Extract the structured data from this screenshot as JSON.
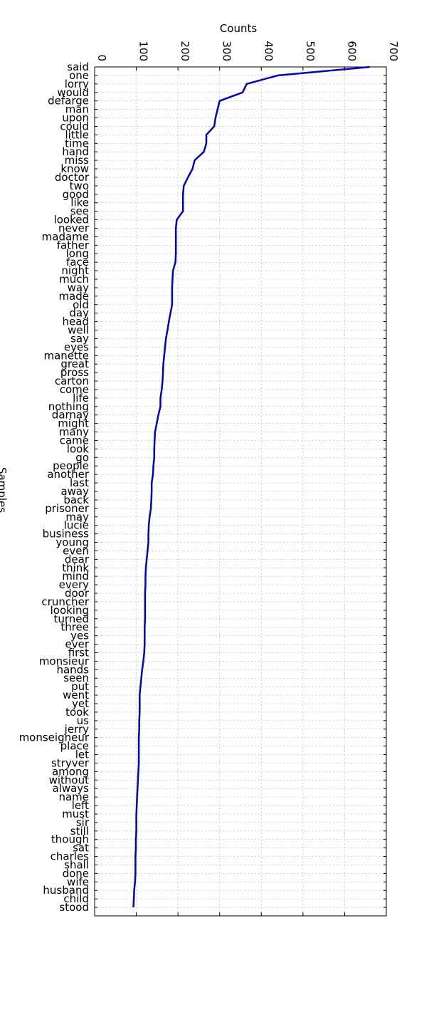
{
  "chart_data": {
    "type": "line",
    "orientation": "vertical-categories",
    "title": "",
    "xlabel": "Counts",
    "ylabel": "Samples",
    "xlim": [
      0,
      700
    ],
    "xticks": [
      "0",
      "100",
      "200",
      "300",
      "400",
      "500",
      "600",
      "700"
    ],
    "grid": true,
    "line_color": "#0000cc",
    "categories": [
      "said",
      "one",
      "lorry",
      "would",
      "defarge",
      "man",
      "upon",
      "could",
      "little",
      "time",
      "hand",
      "miss",
      "know",
      "doctor",
      "two",
      "good",
      "like",
      "see",
      "looked",
      "never",
      "madame",
      "father",
      "long",
      "face",
      "night",
      "much",
      "way",
      "made",
      "old",
      "day",
      "head",
      "well",
      "say",
      "eyes",
      "manette",
      "great",
      "pross",
      "carton",
      "come",
      "life",
      "nothing",
      "darnay",
      "might",
      "many",
      "came",
      "look",
      "go",
      "people",
      "another",
      "last",
      "away",
      "back",
      "prisoner",
      "may",
      "lucie",
      "business",
      "young",
      "even",
      "dear",
      "think",
      "mind",
      "every",
      "door",
      "cruncher",
      "looking",
      "turned",
      "three",
      "yes",
      "ever",
      "first",
      "monsieur",
      "hands",
      "seen",
      "put",
      "went",
      "yet",
      "took",
      "us",
      "jerry",
      "monseigneur",
      "place",
      "let",
      "stryver",
      "among",
      "without",
      "always",
      "name",
      "left",
      "must",
      "sir",
      "still",
      "though",
      "sat",
      "charles",
      "shall",
      "done",
      "wife",
      "husband",
      "child",
      "stood"
    ],
    "values": [
      660,
      440,
      365,
      355,
      300,
      295,
      290,
      287,
      268,
      268,
      262,
      240,
      235,
      224,
      214,
      212,
      212,
      212,
      197,
      195,
      195,
      195,
      195,
      194,
      188,
      187,
      186,
      186,
      186,
      182,
      178,
      175,
      171,
      169,
      167,
      165,
      164,
      163,
      161,
      158,
      158,
      153,
      149,
      145,
      144,
      143,
      143,
      141,
      140,
      137,
      137,
      136,
      135,
      132,
      130,
      129,
      129,
      127,
      125,
      123,
      122,
      122,
      121,
      121,
      121,
      121,
      120,
      120,
      120,
      119,
      117,
      114,
      112,
      110,
      108,
      108,
      108,
      107,
      107,
      106,
      106,
      106,
      106,
      105,
      104,
      103,
      102,
      101,
      100,
      100,
      100,
      99,
      99,
      98,
      98,
      98,
      97,
      95,
      94,
      93
    ]
  }
}
